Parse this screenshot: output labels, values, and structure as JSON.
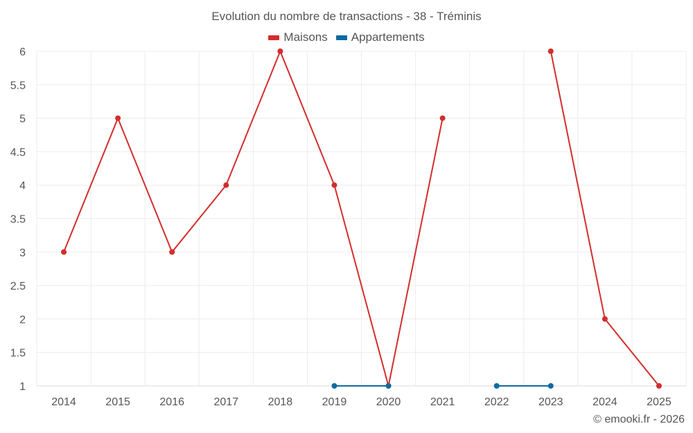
{
  "chart_data": {
    "type": "line",
    "title": "Evolution du nombre de transactions - 38 - Tréminis",
    "xlabel": "",
    "ylabel": "",
    "categories": [
      "2014",
      "2015",
      "2016",
      "2017",
      "2018",
      "2019",
      "2020",
      "2021",
      "2022",
      "2023",
      "2024",
      "2025"
    ],
    "ylim": [
      1,
      6
    ],
    "yticks": [
      "1",
      "1.5",
      "2",
      "2.5",
      "3",
      "3.5",
      "4",
      "4.5",
      "5",
      "5.5",
      "6"
    ],
    "grid": true,
    "legend_position": "top-center",
    "series": [
      {
        "name": "Maisons",
        "color": "#d32d2c",
        "values": [
          3,
          5,
          3,
          4,
          6,
          4,
          1,
          5,
          null,
          6,
          2,
          1
        ]
      },
      {
        "name": "Appartements",
        "color": "#0e6aa1",
        "values": [
          null,
          null,
          null,
          null,
          null,
          1,
          1,
          null,
          1,
          1,
          null,
          null
        ]
      }
    ]
  },
  "credit": "© emooki.fr - 2026"
}
